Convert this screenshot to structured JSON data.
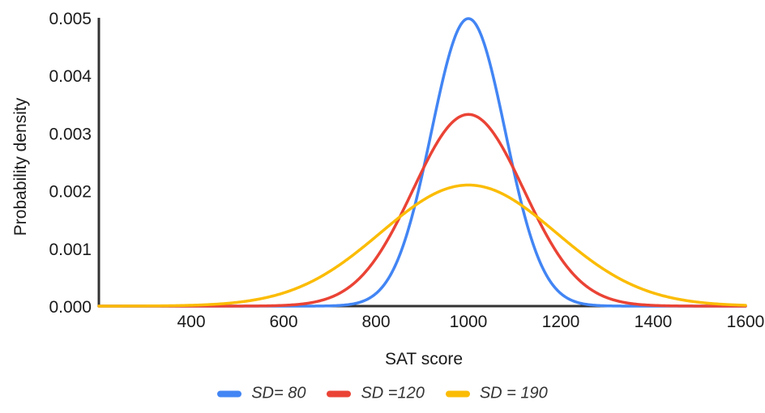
{
  "chart_data": {
    "type": "line",
    "title": "",
    "xlabel": "SAT score",
    "ylabel": "Probability density",
    "xlim": [
      200,
      1600
    ],
    "ylim": [
      0,
      0.005
    ],
    "x_ticks": [
      "400",
      "600",
      "800",
      "1000",
      "1200",
      "1400",
      "1600"
    ],
    "y_ticks": [
      "0.000",
      "0.001",
      "0.002",
      "0.003",
      "0.004",
      "0.005"
    ],
    "grid": false,
    "legend_position": "bottom",
    "distribution": "normal",
    "mean": 1000,
    "series": [
      {
        "name": "SD= 80",
        "sd": 80,
        "peak_density": 0.005,
        "color": "#4285F4"
      },
      {
        "name": "SD =120",
        "sd": 120,
        "peak_density": 0.0033,
        "color": "#EA4335"
      },
      {
        "name": "SD = 190",
        "sd": 190,
        "peak_density": 0.0021,
        "color": "#FBBC04"
      }
    ],
    "axis_color": "#333333",
    "text_color": "#1a1a1a",
    "background": "#FFFFFF"
  }
}
